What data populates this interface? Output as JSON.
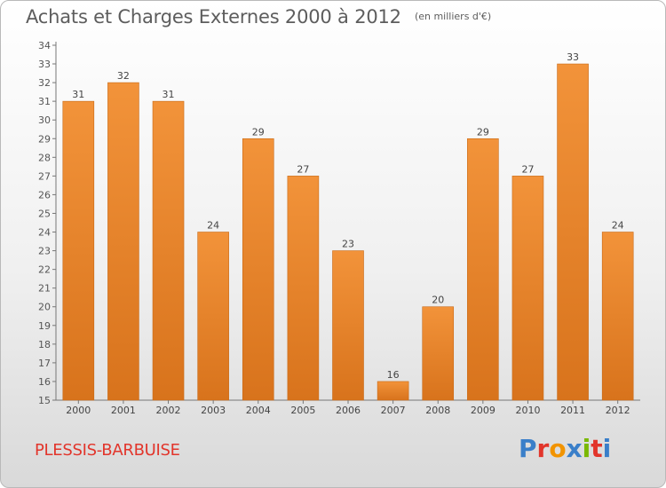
{
  "chart_data": {
    "type": "bar",
    "title": "Achats et Charges Externes 2000 à 2012",
    "subtitle": "(en milliers d'€)",
    "categories": [
      "2000",
      "2001",
      "2002",
      "2003",
      "2004",
      "2005",
      "2006",
      "2007",
      "2008",
      "2009",
      "2010",
      "2011",
      "2012"
    ],
    "values": [
      31,
      32,
      31,
      24,
      29,
      27,
      23,
      16,
      20,
      29,
      27,
      33,
      24
    ],
    "ylim": [
      15,
      34
    ],
    "yticks": [
      15,
      16,
      17,
      18,
      19,
      20,
      21,
      22,
      23,
      24,
      25,
      26,
      27,
      28,
      29,
      30,
      31,
      32,
      33,
      34
    ],
    "grid": false,
    "bar_color": "#f2933a",
    "bar_color_dark": "#d8731c"
  },
  "commune": "PLESSIS-BARBUISE",
  "logo": {
    "text": "Proxiti",
    "letters": [
      "P",
      "r",
      "o",
      "x",
      "i",
      "t",
      "i"
    ],
    "colors": [
      "#3a7fc9",
      "#e2352b",
      "#f29400",
      "#3a7fc9",
      "#7ab800",
      "#e2352b",
      "#3a7fc9"
    ]
  },
  "colors": {
    "title": "#5d5d5d",
    "commune": "#e2352b",
    "axis": "#777777"
  }
}
